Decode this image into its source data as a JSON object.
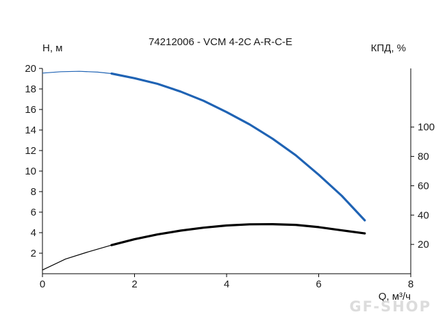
{
  "chart_data": {
    "type": "line",
    "title": "74212006 - VCM 4-2C A-R-C-E",
    "ylabel_left": "H, м",
    "ylabel_right": "КПД, %",
    "xlabel": "Q, м³/ч",
    "xlim": [
      0,
      8
    ],
    "ylim_left": [
      0,
      20
    ],
    "ylim_right": [
      0,
      140
    ],
    "x_ticks": [
      0,
      2,
      4,
      6,
      8
    ],
    "y_left_ticks": [
      2,
      4,
      6,
      8,
      10,
      12,
      14,
      16,
      18,
      20
    ],
    "y_right_ticks": [
      20,
      40,
      60,
      80,
      100
    ],
    "grid": false,
    "series": [
      {
        "key": "head",
        "axis": "left",
        "color": "#1f63b4",
        "points": [
          [
            0,
            19.55
          ],
          [
            0.4,
            19.68
          ],
          [
            0.8,
            19.72
          ],
          [
            1.2,
            19.64
          ],
          [
            1.5,
            19.5
          ],
          [
            2,
            19.05
          ],
          [
            2.5,
            18.5
          ],
          [
            3,
            17.75
          ],
          [
            3.5,
            16.85
          ],
          [
            4,
            15.75
          ],
          [
            4.5,
            14.55
          ],
          [
            5,
            13.15
          ],
          [
            5.5,
            11.55
          ],
          [
            6,
            9.65
          ],
          [
            6.5,
            7.6
          ],
          [
            7,
            5.2
          ]
        ],
        "operating_range": [
          1.5,
          7
        ]
      },
      {
        "key": "efficiency",
        "axis": "right",
        "color": "#000000",
        "points": [
          [
            0,
            2.5
          ],
          [
            0.5,
            10
          ],
          [
            1,
            15
          ],
          [
            1.5,
            19.5
          ],
          [
            2,
            23.5
          ],
          [
            2.5,
            26.8
          ],
          [
            3,
            29.4
          ],
          [
            3.5,
            31.4
          ],
          [
            4,
            32.9
          ],
          [
            4.5,
            33.7
          ],
          [
            5,
            33.8
          ],
          [
            5.5,
            33.3
          ],
          [
            6,
            31.8
          ],
          [
            6.5,
            29.6
          ],
          [
            7,
            27.5
          ]
        ],
        "operating_range": [
          1.5,
          7
        ]
      }
    ]
  },
  "watermark": "GF-SHOP"
}
